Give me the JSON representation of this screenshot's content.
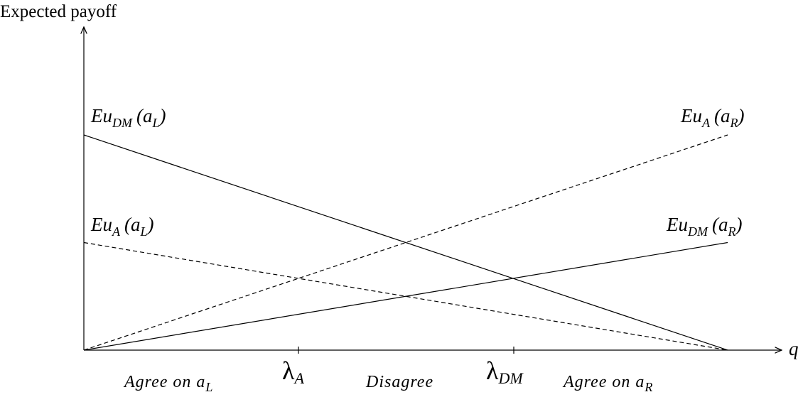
{
  "axes": {
    "y_title": "Expected payoff",
    "x_title": "q"
  },
  "lines": [
    {
      "id": "eu-dm-al",
      "style": "solid",
      "label_main": "Eu",
      "label_sub": "DM",
      "label_arg_open": "(a",
      "label_arg_sub": "L",
      "label_arg_close": ")",
      "start": 1.0,
      "end": 0.0
    },
    {
      "id": "eu-a-al",
      "style": "dashed",
      "label_main": "Eu",
      "label_sub": "A",
      "label_arg_open": "(a",
      "label_arg_sub": "L",
      "label_arg_close": ")",
      "start": 0.5,
      "end": 0.0
    },
    {
      "id": "eu-a-ar",
      "style": "dashed",
      "label_main": "Eu",
      "label_sub": "A",
      "label_arg_open": "(a",
      "label_arg_sub": "R",
      "label_arg_close": ")",
      "start": 0.0,
      "end": 1.0
    },
    {
      "id": "eu-dm-ar",
      "style": "solid",
      "label_main": "Eu",
      "label_sub": "DM",
      "label_arg_open": "(a",
      "label_arg_sub": "R",
      "label_arg_close": ")",
      "start": 0.0,
      "end": 0.5
    }
  ],
  "thresholds": [
    {
      "id": "lambda-a",
      "symbol": "λ",
      "sub": "A",
      "q": 0.3333
    },
    {
      "id": "lambda-dm",
      "symbol": "λ",
      "sub": "DM",
      "q": 0.6667
    }
  ],
  "regions": [
    {
      "id": "agree-al",
      "text_main": "Agree on a",
      "text_sub": "L"
    },
    {
      "id": "disagree",
      "text_main": "Disagree",
      "text_sub": ""
    },
    {
      "id": "agree-ar",
      "text_main": "Agree on a",
      "text_sub": "R"
    }
  ]
}
